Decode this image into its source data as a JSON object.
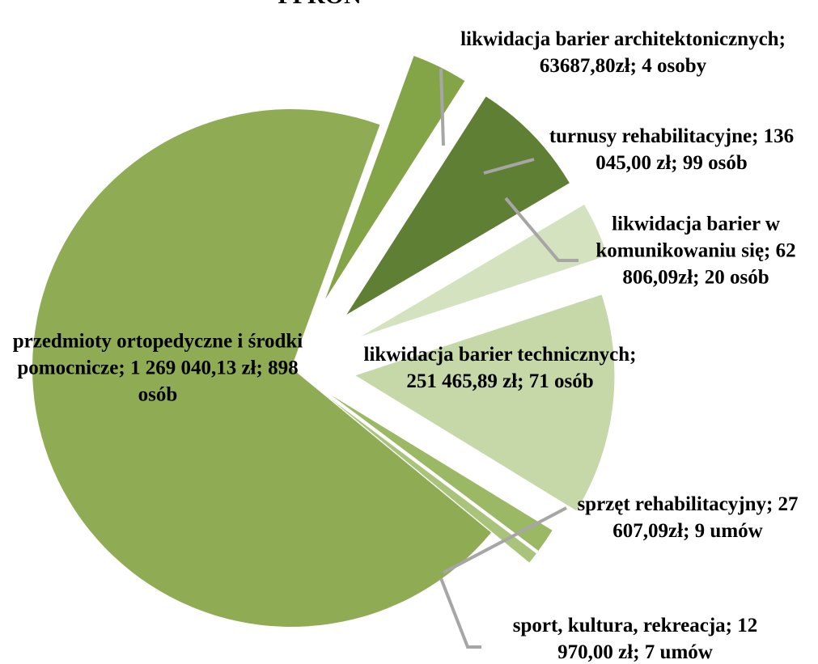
{
  "chart_data": {
    "type": "pie",
    "title": "PFRON",
    "categories": [
      "likwidacja barier architektonicznych;",
      "turnusy rehabilitacyjne;",
      "likwidacja barier w komunikowaniu się;",
      "likwidacja barier technicznych;",
      "sprzęt rehabilitacyjny;",
      "sport, kultura, rekreacja;",
      "przedmioty ortopedyczne i środki pomocnicze;"
    ],
    "values": [
      63687.8,
      136045.0,
      62806.09,
      251465.89,
      27607.09,
      12970.0,
      1269040.13
    ],
    "value_labels": [
      "63687,80zł; 4 osoby",
      "136 045,00 zł; 99 osób",
      "62 806,09zł; 20 osób",
      "251 465,89 zł; 71 osób",
      "27 607,09zł; 9 umów",
      "12 970,00 zł; 7 umów",
      "1 269 040,13 zł; 898 osób"
    ],
    "colors": [
      "#84a448",
      "#5f7f35",
      "#d5e2c0",
      "#c6d7a8",
      "#9bb864",
      "#a9c47a",
      "#8fac55"
    ]
  }
}
